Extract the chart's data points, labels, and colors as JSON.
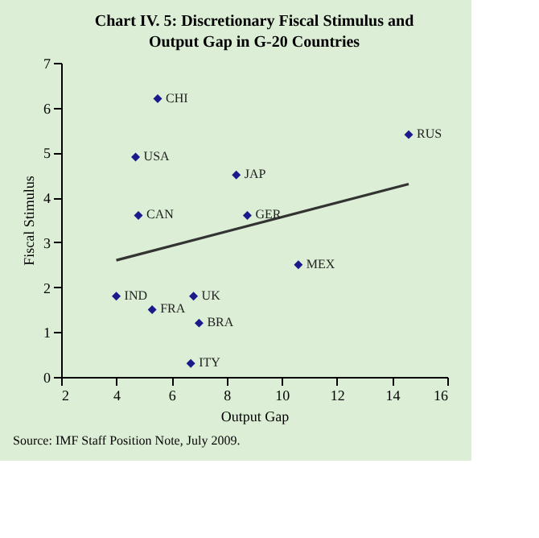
{
  "chart_data": {
    "type": "scatter",
    "title": "Chart IV. 5: Discretionary Fiscal Stimulus and Output Gap in G-20 Countries",
    "xlabel": "Output  Gap",
    "ylabel": "Fiscal Stimulus",
    "xlim": [
      2,
      16
    ],
    "xticks": [
      2,
      4,
      6,
      8,
      10,
      12,
      14,
      16
    ],
    "ylim": [
      0,
      7
    ],
    "yticks": [
      0,
      1,
      2,
      3,
      4,
      5,
      6,
      7
    ],
    "grid": false,
    "legend": false,
    "marker": "diamond",
    "series": [
      {
        "type": "scatter",
        "color": "#1a1a8c",
        "x": [
          5.5,
          4.7,
          8.35,
          14.6,
          4.8,
          8.75,
          10.6,
          4.0,
          6.8,
          5.3,
          7.0,
          6.7
        ],
        "values": [
          6.2,
          4.9,
          4.5,
          5.4,
          3.6,
          3.6,
          2.5,
          1.8,
          1.8,
          1.5,
          1.2,
          0.3
        ]
      },
      {
        "type": "line",
        "color": "#333333",
        "line_style": "solid",
        "marker": "none",
        "x": [
          4,
          14.6
        ],
        "values": [
          2.6,
          4.3
        ]
      }
    ],
    "annotations": [
      {
        "text": "CHI",
        "x": 5.5,
        "y": 6.2
      },
      {
        "text": "USA",
        "x": 4.7,
        "y": 4.9
      },
      {
        "text": "JAP",
        "x": 8.35,
        "y": 4.5
      },
      {
        "text": "RUS",
        "x": 14.6,
        "y": 5.4
      },
      {
        "text": "CAN",
        "x": 4.8,
        "y": 3.6
      },
      {
        "text": "GER",
        "x": 8.75,
        "y": 3.6
      },
      {
        "text": "MEX",
        "x": 10.6,
        "y": 2.5
      },
      {
        "text": "IND",
        "x": 4.0,
        "y": 1.8
      },
      {
        "text": "UK",
        "x": 6.8,
        "y": 1.8
      },
      {
        "text": "FRA",
        "x": 5.3,
        "y": 1.5
      },
      {
        "text": "BRA",
        "x": 7.0,
        "y": 1.2
      },
      {
        "text": "ITY",
        "x": 6.7,
        "y": 0.3
      },
      "Source: IMF Staff Position Note, July 2009."
    ]
  }
}
